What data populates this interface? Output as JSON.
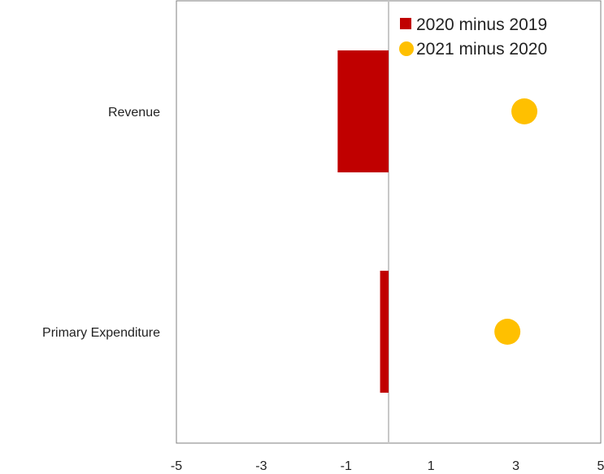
{
  "chart_data": {
    "type": "bar",
    "orientation": "horizontal",
    "categories": [
      "Revenue",
      "Primary Expenditure"
    ],
    "series": [
      {
        "name": "2020 minus 2019",
        "mark": "bar",
        "values": [
          -1.2,
          -0.2
        ]
      },
      {
        "name": "2021 minus 2020",
        "mark": "dot",
        "values": [
          3.2,
          2.8
        ]
      }
    ],
    "xlim": [
      -5,
      5
    ],
    "x_ticks": [
      "-5",
      "-3",
      "-1",
      "1",
      "3",
      "5"
    ],
    "title": "",
    "xlabel": "",
    "ylabel": "",
    "grid": false,
    "legend_position": "top-right",
    "colors": {
      "bar": "#c00000",
      "dot": "#ffc000",
      "zero_line": "#c8c8c8",
      "frame": "#7f7f7f"
    }
  }
}
